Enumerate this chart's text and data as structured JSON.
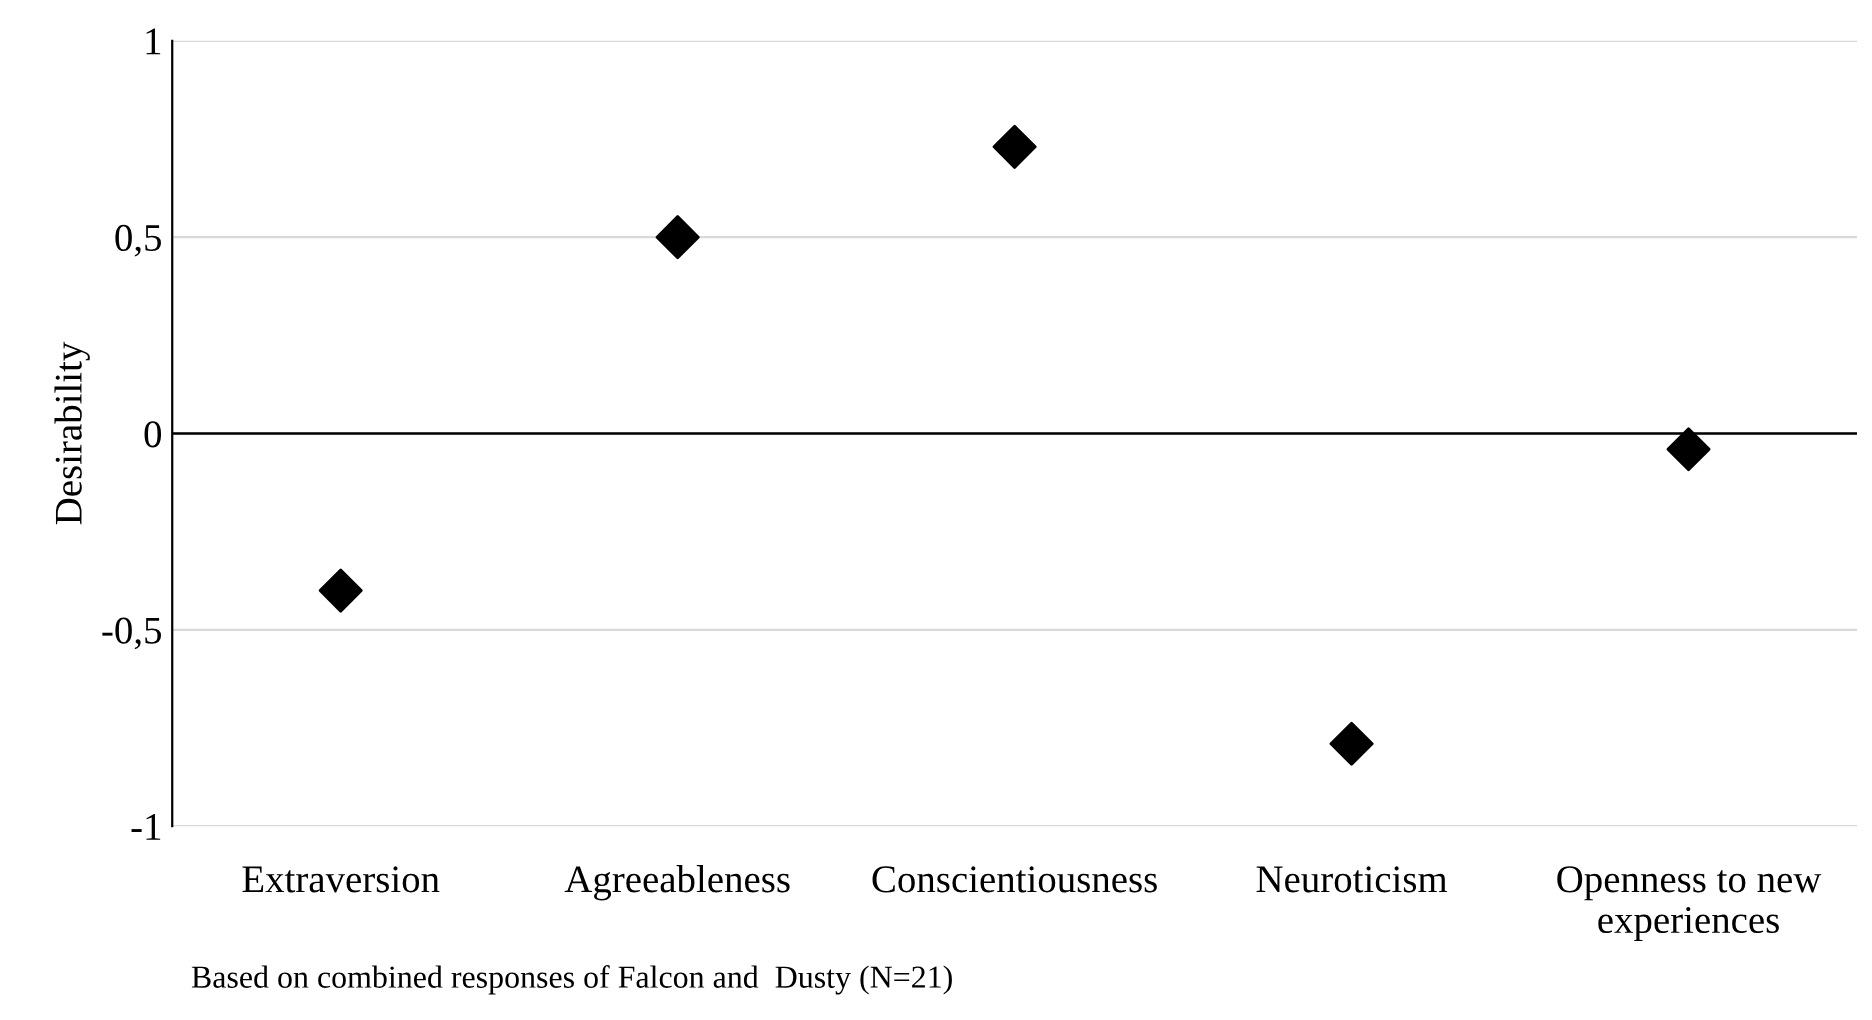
{
  "chart_data": {
    "type": "scatter",
    "ylabel": "Desirability",
    "categories": [
      "Extraversion",
      "Agreeableness",
      "Conscientiousness",
      "Neuroticism",
      "Openness to new experiences"
    ],
    "series": [
      {
        "color": "#000000",
        "values": [
          -0.4,
          0.5,
          0.73,
          -0.79,
          -0.04
        ]
      }
    ],
    "marker": "diamond",
    "ylim": [
      -1,
      1
    ],
    "yticks": [
      {
        "value": -1,
        "label": "-1"
      },
      {
        "value": -0.5,
        "label": "-0,5"
      },
      0,
      {
        "value": 0.5,
        "label": "0,5"
      },
      1
    ],
    "grid": "y",
    "legend": false,
    "ref_lines": [
      {
        "axis": "y",
        "value": 0,
        "color": "#000000"
      }
    ],
    "annotations": [
      "Based on combined responses of Falcon and  Dusty (N=21)"
    ]
  }
}
